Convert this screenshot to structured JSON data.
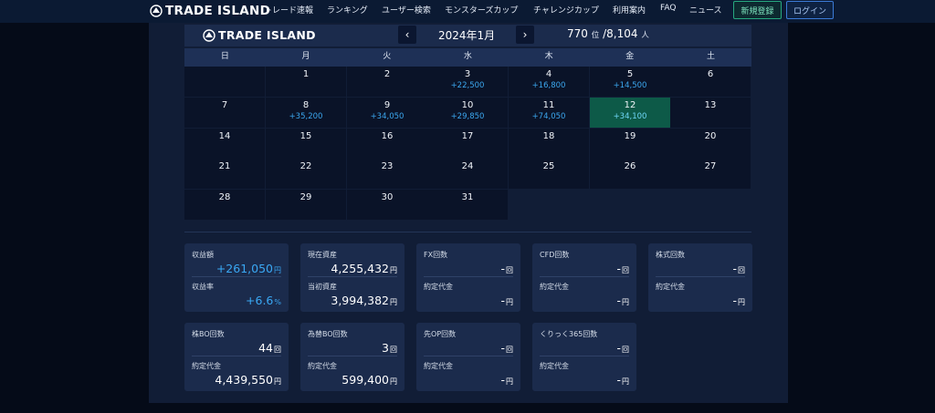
{
  "nav": {
    "brand": "TRADE ISLAND",
    "items": [
      "トレード速報",
      "ランキング",
      "ユーザー検索",
      "モンスターズカップ",
      "チャレンジカップ",
      "利用案内",
      "FAQ",
      "ニュース"
    ],
    "register": "新規登録",
    "login": "ログイン"
  },
  "calendar": {
    "brand": "TRADE ISLAND",
    "prev": "‹",
    "next": "›",
    "month": "2024年1月",
    "rank": "770",
    "rank_unit": "位",
    "total": "/8,104",
    "total_unit": "人",
    "weekdays": [
      "日",
      "月",
      "火",
      "水",
      "木",
      "金",
      "土"
    ],
    "days": [
      {
        "day": "",
        "profit": ""
      },
      {
        "day": "1",
        "profit": ""
      },
      {
        "day": "2",
        "profit": ""
      },
      {
        "day": "3",
        "profit": "+22,500"
      },
      {
        "day": "4",
        "profit": "+16,800"
      },
      {
        "day": "5",
        "profit": "+14,500"
      },
      {
        "day": "6",
        "profit": ""
      },
      {
        "day": "7",
        "profit": ""
      },
      {
        "day": "8",
        "profit": "+35,200"
      },
      {
        "day": "9",
        "profit": "+34,050"
      },
      {
        "day": "10",
        "profit": "+29,850"
      },
      {
        "day": "11",
        "profit": "+74,050"
      },
      {
        "day": "12",
        "profit": "+34,100",
        "highlight": true
      },
      {
        "day": "13",
        "profit": ""
      },
      {
        "day": "14",
        "profit": ""
      },
      {
        "day": "15",
        "profit": ""
      },
      {
        "day": "16",
        "profit": ""
      },
      {
        "day": "17",
        "profit": ""
      },
      {
        "day": "18",
        "profit": ""
      },
      {
        "day": "19",
        "profit": ""
      },
      {
        "day": "20",
        "profit": ""
      },
      {
        "day": "21",
        "profit": ""
      },
      {
        "day": "22",
        "profit": ""
      },
      {
        "day": "23",
        "profit": ""
      },
      {
        "day": "24",
        "profit": ""
      },
      {
        "day": "25",
        "profit": ""
      },
      {
        "day": "26",
        "profit": ""
      },
      {
        "day": "27",
        "profit": ""
      },
      {
        "day": "28",
        "profit": ""
      },
      {
        "day": "29",
        "profit": ""
      },
      {
        "day": "30",
        "profit": ""
      },
      {
        "day": "31",
        "profit": ""
      }
    ]
  },
  "stats": [
    {
      "label1": "収益額",
      "value1": "+261,050",
      "unit1": "円",
      "blue1": true,
      "label2": "収益率",
      "value2": "+6.6",
      "unit2": "%",
      "blue2": true
    },
    {
      "label1": "現在資産",
      "value1": "4,255,432",
      "unit1": "円",
      "label2": "当初資産",
      "value2": "3,994,382",
      "unit2": "円"
    },
    {
      "label1": "FX回数",
      "value1": "-",
      "unit1": "回",
      "label2": "約定代金",
      "value2": "-",
      "unit2": "円"
    },
    {
      "label1": "CFD回数",
      "value1": "-",
      "unit1": "回",
      "label2": "約定代金",
      "value2": "-",
      "unit2": "円"
    },
    {
      "label1": "株式回数",
      "value1": "-",
      "unit1": "回",
      "label2": "約定代金",
      "value2": "-",
      "unit2": "円"
    },
    {
      "label1": "株BO回数",
      "value1": "44",
      "unit1": "回",
      "label2": "約定代金",
      "value2": "4,439,550",
      "unit2": "円"
    },
    {
      "label1": "為替BO回数",
      "value1": "3",
      "unit1": "回",
      "label2": "約定代金",
      "value2": "599,400",
      "unit2": "円"
    },
    {
      "label1": "先OP回数",
      "value1": "-",
      "unit1": "回",
      "label2": "約定代金",
      "value2": "-",
      "unit2": "円"
    },
    {
      "label1": "くりっく365回数",
      "value1": "-",
      "unit1": "回",
      "label2": "約定代金",
      "value2": "-",
      "unit2": "円"
    }
  ],
  "colors": {
    "background": "#050b18",
    "panel": "#111d36",
    "card": "#1b2b4c",
    "profit_blue": "#3aa8f4",
    "highlight_green": "#0d5a48"
  }
}
